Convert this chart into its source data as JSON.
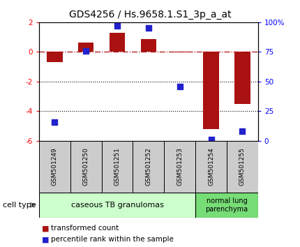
{
  "title": "GDS4256 / Hs.9658.1.S1_3p_a_at",
  "categories": [
    "GSM501249",
    "GSM501250",
    "GSM501251",
    "GSM501252",
    "GSM501253",
    "GSM501254",
    "GSM501255"
  ],
  "red_values": [
    -0.7,
    0.65,
    1.3,
    0.85,
    -0.05,
    -5.2,
    -3.5
  ],
  "blue_pct": [
    16,
    76,
    97,
    95,
    46,
    1,
    8
  ],
  "ylim_left": [
    -6,
    2
  ],
  "ylim_right": [
    0,
    100
  ],
  "right_ticks": [
    0,
    25,
    50,
    75,
    100
  ],
  "right_tick_labels": [
    "0",
    "25",
    "50",
    "75",
    "100%"
  ],
  "left_ticks": [
    -6,
    -4,
    -2,
    0,
    2
  ],
  "dotted_lines": [
    -2,
    -4
  ],
  "bar_color": "#aa1111",
  "dot_color": "#2222cc",
  "bar_width": 0.5,
  "dot_size": 30,
  "group1_label": "caseous TB granulomas",
  "group1_color": "#ccffcc",
  "group1_indices": [
    0,
    1,
    2,
    3,
    4
  ],
  "group2_label": "normal lung\nparenchyma",
  "group2_color": "#77dd77",
  "group2_indices": [
    5,
    6
  ],
  "legend_label_red": "transformed count",
  "legend_label_blue": "percentile rank within the sample",
  "cell_type_label": "cell type",
  "bg_color": "#ffffff",
  "title_fontsize": 10,
  "tick_fontsize": 7.5,
  "label_fontsize": 7.5,
  "cat_fontsize": 6.5,
  "ct_fontsize": 8,
  "legend_fontsize": 7.5
}
